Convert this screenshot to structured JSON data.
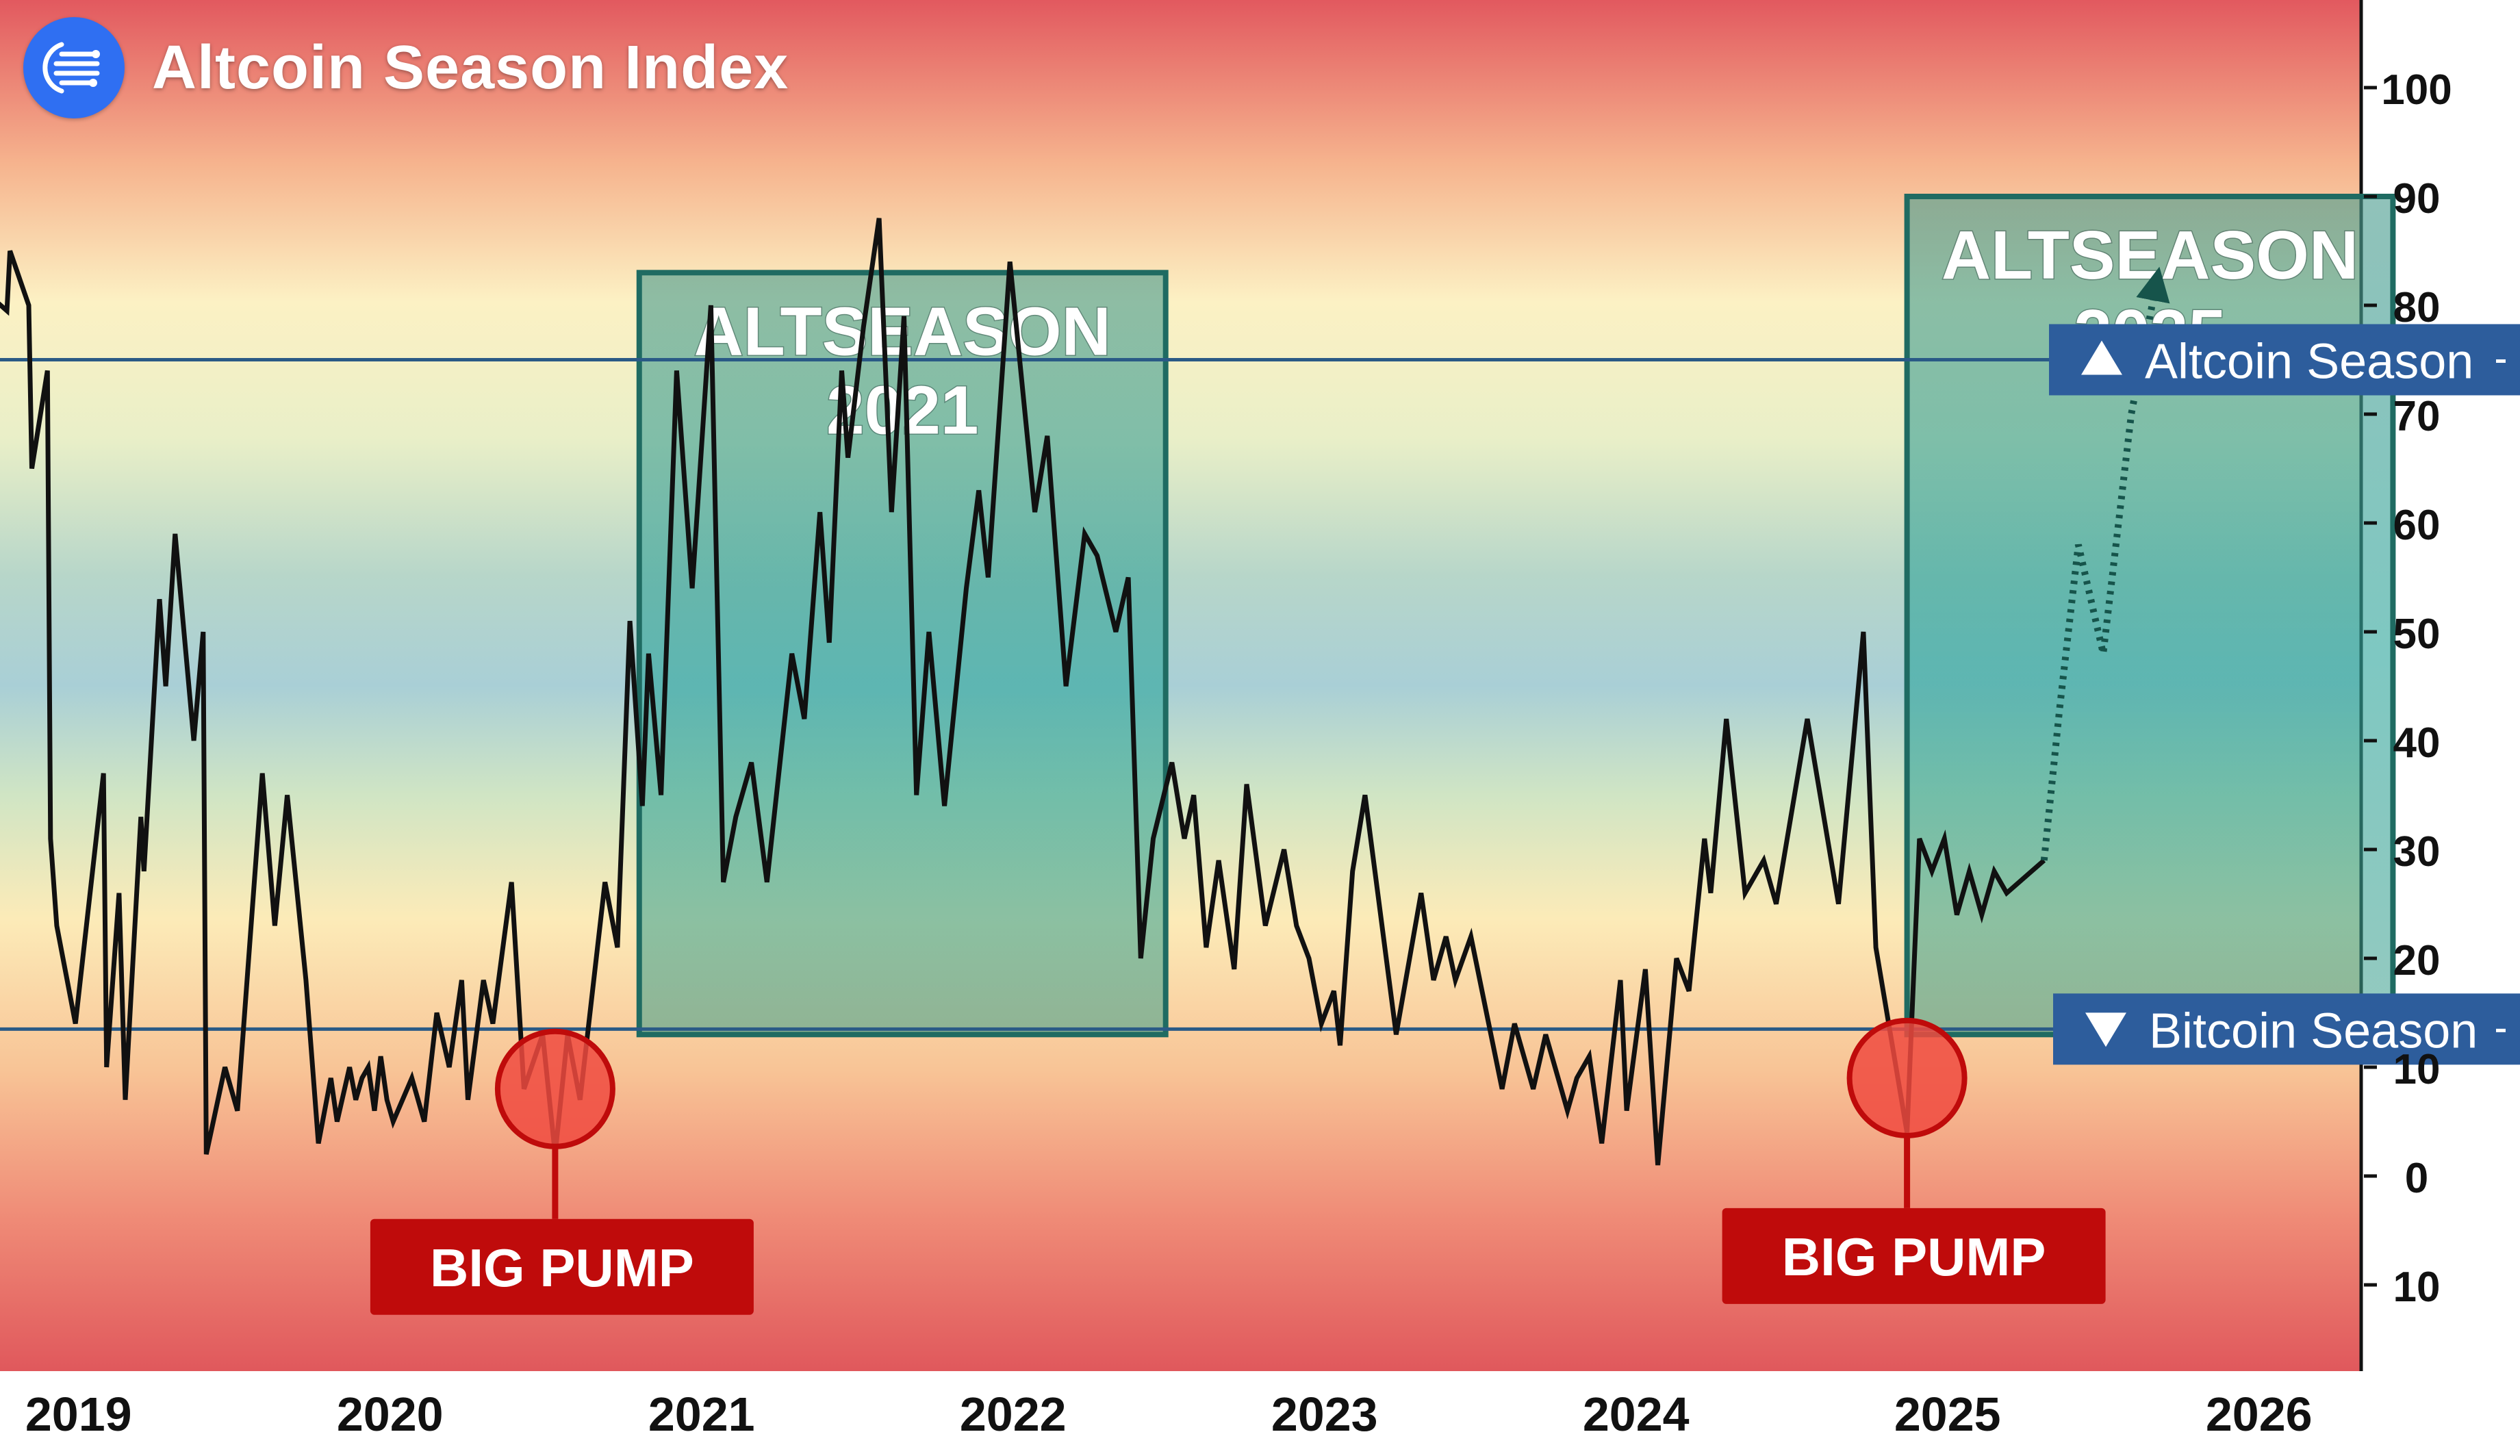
{
  "header": {
    "title": "Altcoin Season Index",
    "logo_icon": "antenna-lines-icon"
  },
  "colors": {
    "brand": "#2f6ff2",
    "line": "#111111",
    "box_fill": "#3aa394",
    "box_border": "#1f6b62",
    "threshold_line": "#2a5a86",
    "badge": "#2d5d9c",
    "pump": "#bf0b0b",
    "pump_marker": "#f04a40",
    "projection": "#16544b"
  },
  "chart_data": {
    "type": "line",
    "title": "Altcoin Season Index",
    "xlabel": "",
    "ylabel": "",
    "x_ticks": [
      "2019",
      "2020",
      "2021",
      "2022",
      "2023",
      "2024",
      "2025",
      "2026"
    ],
    "y_ticks": [
      100,
      90,
      80,
      70,
      60,
      50,
      40,
      30,
      20,
      10,
      0,
      -10
    ],
    "y_tick_labels": [
      "100",
      "90",
      "80",
      "70",
      "60",
      "50",
      "40",
      "30",
      "20",
      "10",
      "0",
      "10"
    ],
    "ylim": [
      -28,
      101
    ],
    "xlim": [
      2018.78,
      2026.86
    ],
    "grid": false,
    "background": "vertical gradient: red near 100 and near -10, yellow around 75 and 15, teal around 45",
    "series": [
      {
        "style": "solid",
        "points": [
          [
            2018.78,
            80.5
          ],
          [
            2018.82,
            79.5
          ],
          [
            2018.83,
            85
          ],
          [
            2018.89,
            80
          ],
          [
            2018.9,
            65
          ],
          [
            2018.95,
            74
          ],
          [
            2018.96,
            31
          ],
          [
            2018.98,
            23
          ],
          [
            2019.04,
            14
          ],
          [
            2019.13,
            37
          ],
          [
            2019.14,
            10
          ],
          [
            2019.18,
            26
          ],
          [
            2019.2,
            7
          ],
          [
            2019.25,
            33
          ],
          [
            2019.26,
            28
          ],
          [
            2019.31,
            53
          ],
          [
            2019.33,
            45
          ],
          [
            2019.36,
            59
          ],
          [
            2019.42,
            40
          ],
          [
            2019.45,
            50
          ],
          [
            2019.46,
            2
          ],
          [
            2019.52,
            10
          ],
          [
            2019.56,
            6
          ],
          [
            2019.64,
            37
          ],
          [
            2019.68,
            23
          ],
          [
            2019.72,
            35
          ],
          [
            2019.78,
            18
          ],
          [
            2019.82,
            3
          ],
          [
            2019.86,
            9
          ],
          [
            2019.88,
            5
          ],
          [
            2019.92,
            10
          ],
          [
            2019.94,
            7
          ],
          [
            2019.96,
            9
          ],
          [
            2019.98,
            10
          ],
          [
            2020.0,
            6
          ],
          [
            2020.02,
            11
          ],
          [
            2020.04,
            7
          ],
          [
            2020.06,
            5
          ],
          [
            2020.12,
            9
          ],
          [
            2020.16,
            5
          ],
          [
            2020.2,
            15
          ],
          [
            2020.24,
            10
          ],
          [
            2020.28,
            18
          ],
          [
            2020.3,
            7
          ],
          [
            2020.35,
            18
          ],
          [
            2020.38,
            14
          ],
          [
            2020.44,
            27
          ],
          [
            2020.48,
            8
          ],
          [
            2020.54,
            13
          ],
          [
            2020.58,
            2
          ],
          [
            2020.62,
            13
          ],
          [
            2020.66,
            7
          ],
          [
            2020.74,
            27
          ],
          [
            2020.78,
            21
          ],
          [
            2020.82,
            51
          ],
          [
            2020.86,
            34
          ],
          [
            2020.88,
            48
          ],
          [
            2020.92,
            35
          ],
          [
            2020.97,
            74
          ],
          [
            2021.02,
            54
          ],
          [
            2021.08,
            80
          ],
          [
            2021.12,
            27
          ],
          [
            2021.16,
            33
          ],
          [
            2021.21,
            38
          ],
          [
            2021.26,
            27
          ],
          [
            2021.34,
            48
          ],
          [
            2021.38,
            42
          ],
          [
            2021.43,
            61
          ],
          [
            2021.46,
            49
          ],
          [
            2021.5,
            74
          ],
          [
            2021.52,
            66
          ],
          [
            2021.57,
            78
          ],
          [
            2021.62,
            88
          ],
          [
            2021.66,
            61
          ],
          [
            2021.7,
            79
          ],
          [
            2021.74,
            35
          ],
          [
            2021.78,
            50
          ],
          [
            2021.83,
            34
          ],
          [
            2021.9,
            54
          ],
          [
            2021.94,
            63
          ],
          [
            2021.97,
            55
          ],
          [
            2022.04,
            84
          ],
          [
            2022.12,
            61
          ],
          [
            2022.16,
            68
          ],
          [
            2022.22,
            45
          ],
          [
            2022.28,
            59
          ],
          [
            2022.32,
            57
          ],
          [
            2022.38,
            50
          ],
          [
            2022.42,
            55
          ],
          [
            2022.46,
            20
          ],
          [
            2022.5,
            31
          ],
          [
            2022.56,
            38
          ],
          [
            2022.6,
            31
          ],
          [
            2022.63,
            35
          ],
          [
            2022.67,
            21
          ],
          [
            2022.71,
            29
          ],
          [
            2022.76,
            19
          ],
          [
            2022.8,
            36
          ],
          [
            2022.86,
            23
          ],
          [
            2022.92,
            30
          ],
          [
            2022.96,
            23
          ],
          [
            2023.0,
            20
          ],
          [
            2023.04,
            14
          ],
          [
            2023.08,
            17
          ],
          [
            2023.1,
            12
          ],
          [
            2023.14,
            28
          ],
          [
            2023.18,
            35
          ],
          [
            2023.28,
            13
          ],
          [
            2023.36,
            26
          ],
          [
            2023.4,
            18
          ],
          [
            2023.44,
            22
          ],
          [
            2023.47,
            18
          ],
          [
            2023.52,
            22
          ],
          [
            2023.57,
            15
          ],
          [
            2023.62,
            8
          ],
          [
            2023.66,
            14
          ],
          [
            2023.72,
            8
          ],
          [
            2023.76,
            13
          ],
          [
            2023.8,
            9
          ],
          [
            2023.83,
            6
          ],
          [
            2023.86,
            9
          ],
          [
            2023.9,
            11
          ],
          [
            2023.94,
            3
          ],
          [
            2024.0,
            18
          ],
          [
            2024.02,
            6
          ],
          [
            2024.08,
            19
          ],
          [
            2024.12,
            1
          ],
          [
            2024.18,
            20
          ],
          [
            2024.22,
            17
          ],
          [
            2024.27,
            31
          ],
          [
            2024.29,
            26
          ],
          [
            2024.34,
            42
          ],
          [
            2024.4,
            26
          ],
          [
            2024.46,
            29
          ],
          [
            2024.5,
            25
          ],
          [
            2024.6,
            42
          ],
          [
            2024.7,
            25
          ],
          [
            2024.78,
            50
          ],
          [
            2024.82,
            21
          ],
          [
            2024.92,
            4
          ],
          [
            2024.96,
            31
          ],
          [
            2025.0,
            28
          ],
          [
            2025.04,
            31
          ],
          [
            2025.08,
            24
          ],
          [
            2025.12,
            28
          ],
          [
            2025.16,
            24
          ],
          [
            2025.2,
            28
          ],
          [
            2025.24,
            26
          ],
          [
            2025.32,
            28
          ],
          [
            2025.36,
            29
          ]
        ]
      },
      {
        "style": "dotted-projection",
        "points": [
          [
            2025.36,
            29
          ],
          [
            2025.41,
            43
          ],
          [
            2025.47,
            58
          ],
          [
            2025.55,
            48
          ],
          [
            2025.64,
            70
          ],
          [
            2025.72,
            82
          ]
        ]
      }
    ],
    "thresholds": [
      {
        "value": 75,
        "label": "Altcoin Season",
        "direction": "up",
        "icon": "triangle-up-icon"
      },
      {
        "value": 13.5,
        "label": "Bitcoin Season",
        "direction": "down",
        "icon": "triangle-down-icon"
      }
    ],
    "annotations": [
      {
        "type": "box",
        "label_line1": "ALTSEASON",
        "label_line2": "2021",
        "x_range": [
          2020.85,
          2022.54
        ],
        "y_range": [
          13,
          83
        ]
      },
      {
        "type": "box",
        "label_line1": "ALTSEASON",
        "label_line2": "2025",
        "x_range": [
          2024.92,
          2026.48
        ],
        "y_range": [
          13,
          90
        ]
      },
      {
        "type": "callout",
        "label": "BIG PUMP",
        "x": 2020.58,
        "y": 8
      },
      {
        "type": "callout",
        "label": "BIG PUMP",
        "x": 2024.92,
        "y": 9
      }
    ]
  }
}
